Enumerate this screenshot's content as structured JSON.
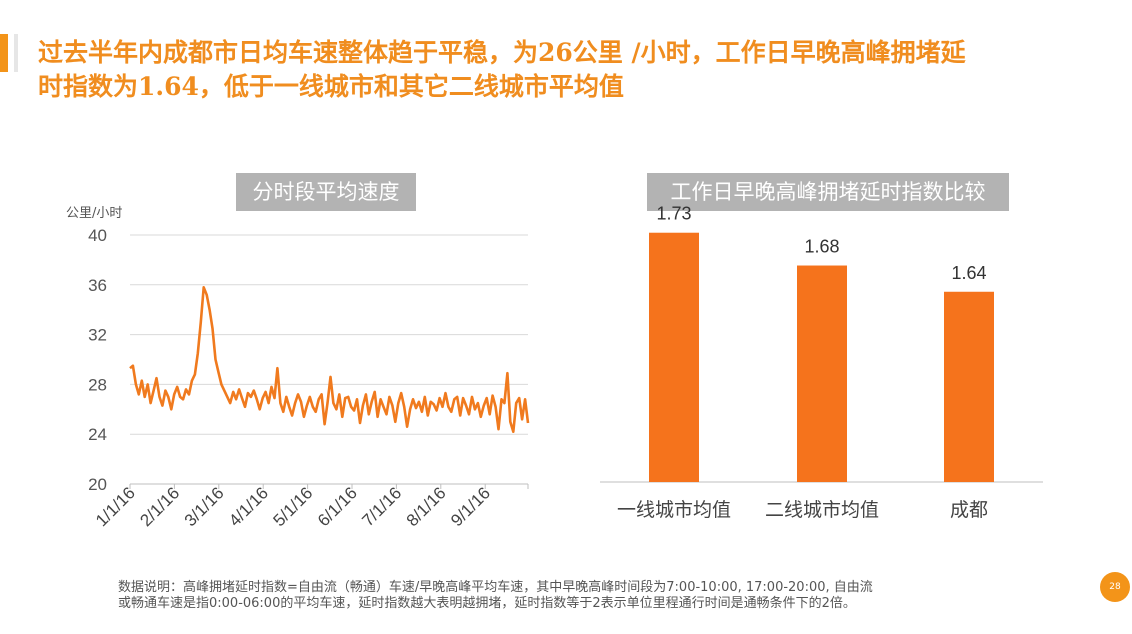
{
  "headline": {
    "line1": "过去半年内成都市日均车速整体趋于平稳，为26公里 /小时，工作日早晚高峰拥堵延",
    "line2": "时指数为1.64，低于一线城市和其它二线城市平均值"
  },
  "colors": {
    "accent": "#f39419",
    "bar": "#f5731c",
    "line": "#f07a1e",
    "title_bg": "#b3b3b3"
  },
  "chart_data": [
    {
      "type": "line",
      "title": "分时段平均速度",
      "ylabel": "公里/小时",
      "ylim": [
        20,
        40
      ],
      "yticks": [
        "20",
        "24",
        "28",
        "32",
        "36",
        "40"
      ],
      "xticks": [
        "1/1/16",
        "2/1/16",
        "3/1/16",
        "4/1/16",
        "5/1/16",
        "6/1/16",
        "7/1/16",
        "8/1/16",
        "9/1/16"
      ],
      "series": [
        {
          "name": "平均速度",
          "values": [
            29.3,
            29.5,
            28.0,
            27.2,
            28.3,
            27.0,
            28.0,
            26.5,
            27.5,
            28.5,
            27.0,
            26.3,
            27.5,
            27.0,
            26.0,
            27.2,
            27.8,
            27.0,
            26.8,
            27.6,
            27.2,
            28.3,
            28.8,
            30.5,
            33.0,
            35.8,
            35.2,
            34.0,
            32.5,
            30.0,
            29.0,
            28.0,
            27.5,
            27.0,
            26.5,
            27.4,
            26.8,
            27.6,
            26.9,
            26.2,
            27.3,
            27.0,
            27.5,
            26.8,
            26.0,
            26.9,
            27.4,
            26.5,
            27.8,
            26.9,
            29.3,
            26.5,
            25.8,
            27.0,
            26.2,
            25.5,
            26.5,
            27.2,
            26.6,
            25.4,
            26.3,
            27.0,
            26.2,
            25.8,
            26.8,
            27.2,
            24.8,
            26.5,
            28.6,
            26.5,
            26.0,
            27.2,
            25.4,
            26.9,
            27.0,
            26.2,
            25.9,
            26.8,
            24.9,
            26.3,
            27.2,
            25.6,
            26.6,
            27.4,
            25.4,
            26.8,
            26.2,
            25.6,
            27.0,
            26.3,
            25.0,
            26.5,
            27.3,
            26.2,
            24.6,
            26.0,
            26.8,
            26.1,
            26.6,
            25.8,
            27.0,
            25.5,
            26.6,
            26.4,
            25.9,
            26.9,
            26.2,
            27.3,
            26.2,
            25.8,
            26.8,
            27.0,
            25.5,
            26.9,
            26.3,
            25.6,
            27.0,
            26.0,
            26.5,
            25.4,
            26.3,
            26.9,
            25.6,
            27.1,
            26.2,
            24.4,
            26.8,
            26.5,
            28.9,
            25.0,
            24.2,
            26.5,
            26.9,
            25.2,
            26.8,
            24.9
          ]
        }
      ]
    },
    {
      "type": "bar",
      "title": "工作日早晚高峰拥堵延时指数比较",
      "categories": [
        "一线城市均值",
        "二线城市均值",
        "成都"
      ],
      "values": [
        1.73,
        1.68,
        1.64
      ],
      "labels": [
        "1.73",
        "1.68",
        "1.64"
      ],
      "ylim": [
        1.35,
        1.85
      ]
    }
  ],
  "footnote": {
    "line1": "数据说明：高峰拥堵延时指数=自由流（畅通）车速/早晚高峰平均车速，其中早晚高峰时间段为7:00-10:00, 17:00-20:00, 自由流",
    "line2": "或畅通车速是指0:00-06:00的平均车速，延时指数越大表明越拥堵，延时指数等于2表示单位里程通行时间是通畅条件下的2倍。"
  },
  "page_number": "28"
}
